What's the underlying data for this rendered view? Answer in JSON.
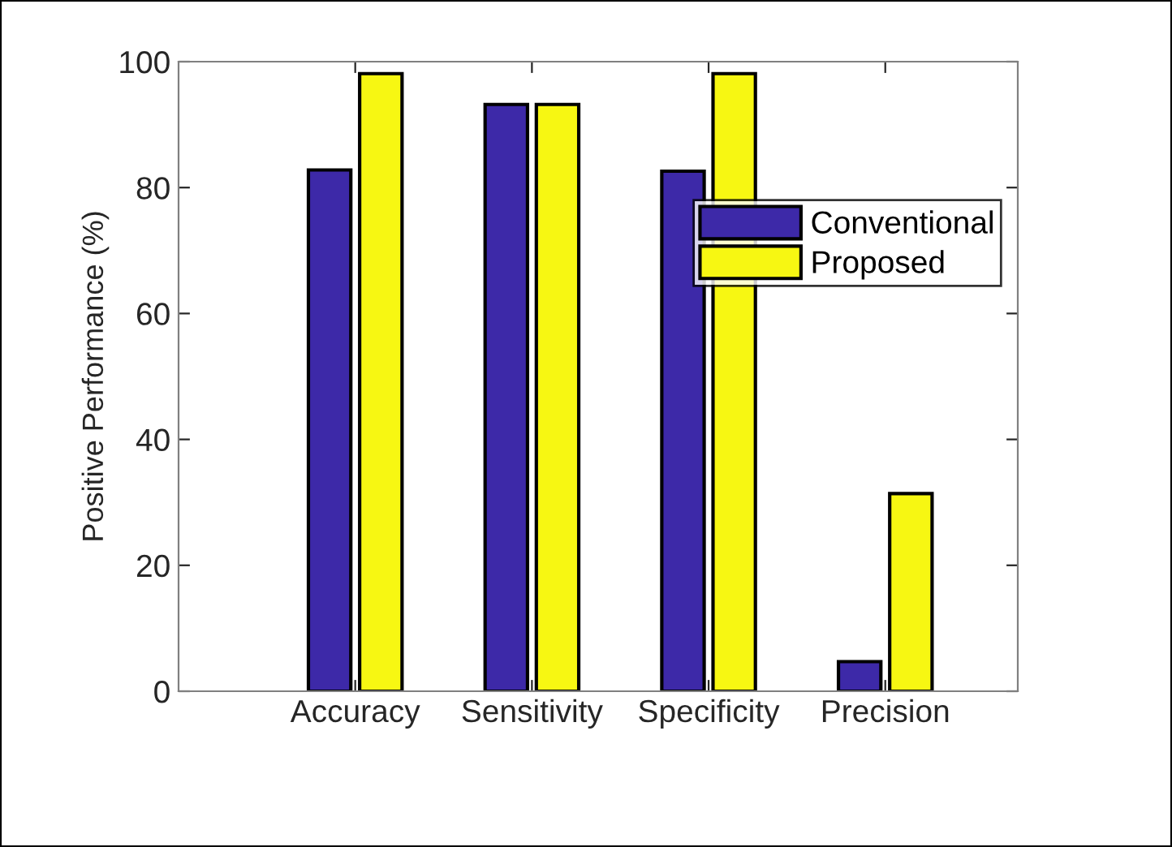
{
  "chart_data": {
    "type": "bar",
    "ylabel": "Positive Performance (%)",
    "categories": [
      "Accuracy",
      "Sensitivity",
      "Specificity",
      "Precision"
    ],
    "series": [
      {
        "name": "Conventional",
        "color": "#3d29a8",
        "values": [
          82.8,
          93.2,
          82.6,
          4.7
        ]
      },
      {
        "name": "Proposed",
        "color": "#f7f712",
        "values": [
          98.1,
          93.2,
          98.1,
          31.4
        ]
      }
    ],
    "ylim": [
      0,
      100
    ],
    "yticks": [
      0,
      20,
      40,
      60,
      80,
      100
    ],
    "grid": false,
    "legend": "top right"
  }
}
